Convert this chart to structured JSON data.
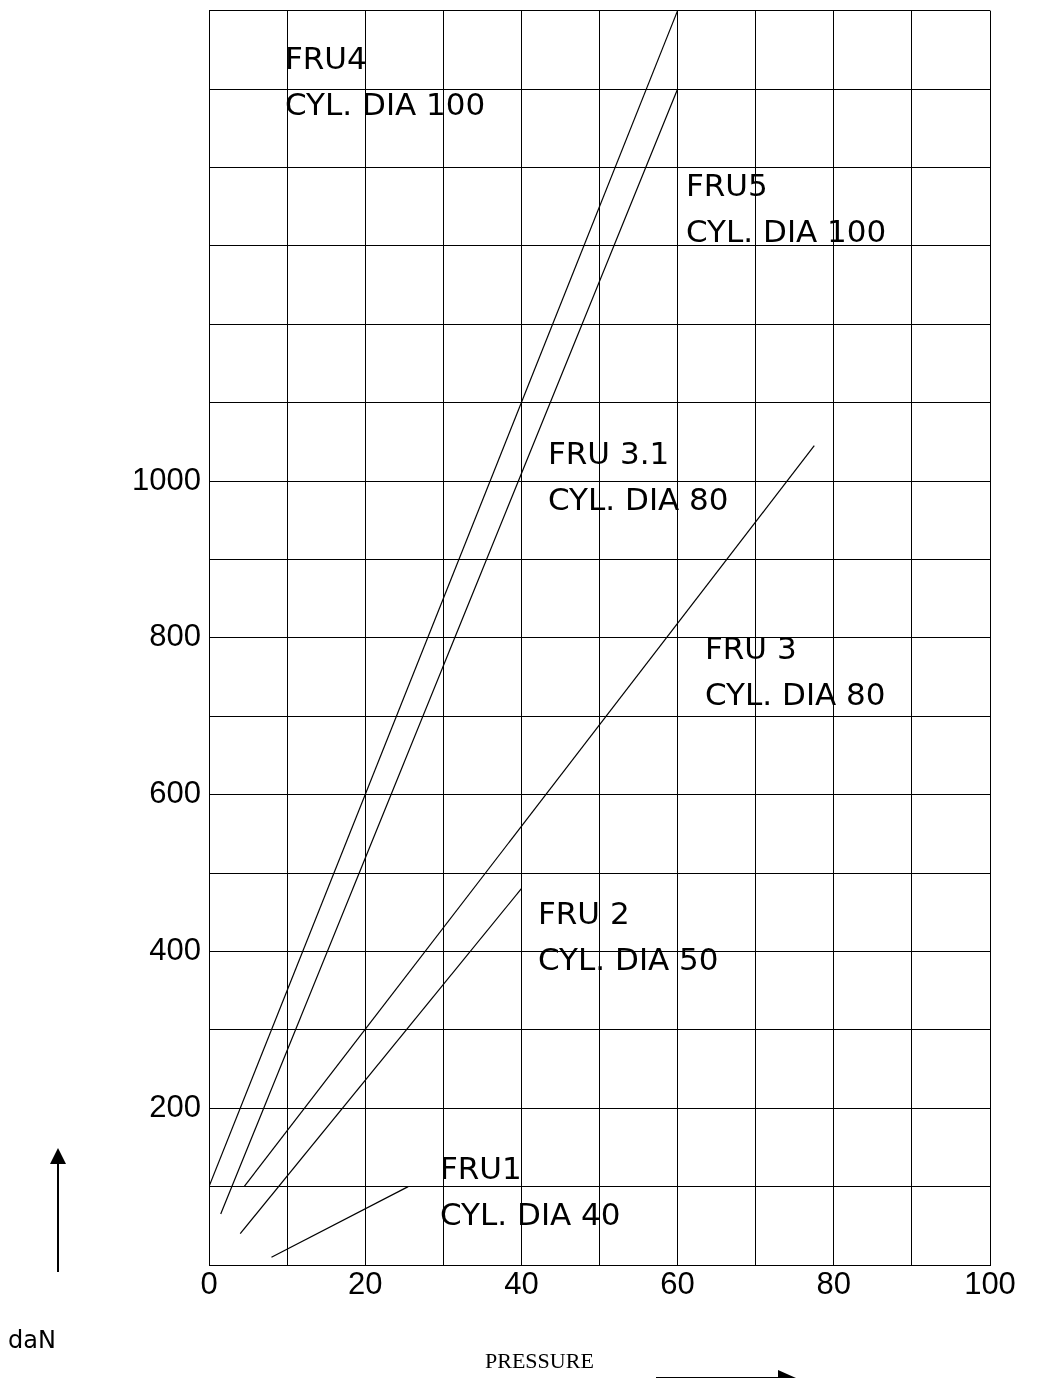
{
  "chart_data": {
    "type": "line",
    "xlabel": "PRESSURE",
    "ylabel": "daN",
    "xlim": [
      0,
      100
    ],
    "ylim": [
      0,
      1600
    ],
    "xticks": [
      0,
      {
        "value": 10,
        "label": null
      },
      20,
      {
        "value": 30,
        "label": null
      },
      40,
      {
        "value": 50,
        "label": null
      },
      60,
      {
        "value": 70,
        "label": null
      },
      80,
      {
        "value": 90,
        "label": null
      },
      100
    ],
    "yticks": [
      {
        "value": 0,
        "label": null
      },
      {
        "value": 100,
        "label": null
      },
      200,
      {
        "value": 300,
        "label": null
      },
      400,
      {
        "value": 500,
        "label": null
      },
      600,
      {
        "value": 700,
        "label": null
      },
      800,
      {
        "value": 900,
        "label": null
      },
      1000,
      {
        "value": 1100,
        "label": null
      },
      {
        "value": 1200,
        "label": null
      },
      {
        "value": 1300,
        "label": null
      },
      {
        "value": 1400,
        "label": null
      },
      {
        "value": 1500,
        "label": null
      },
      {
        "value": 1600,
        "label": null
      }
    ],
    "grid": true,
    "legend": false,
    "marker": "none",
    "line_style": "solid",
    "series": [
      {
        "color": "#000000",
        "x": [
          0,
          60
        ],
        "values": [
          100,
          1600
        ]
      },
      {
        "color": "#000000",
        "x": [
          1.5,
          60
        ],
        "values": [
          65,
          1500
        ]
      },
      {
        "color": "#000000",
        "x": [
          4.5,
          77.5
        ],
        "values": [
          100,
          1045
        ]
      },
      {
        "color": "#000000",
        "x": [
          4,
          40
        ],
        "values": [
          40,
          480
        ]
      },
      {
        "color": "#000000",
        "x": [
          8,
          25.5
        ],
        "values": [
          10,
          100
        ]
      }
    ],
    "annotations": [
      "FRU4\nCYL. DIA 100",
      "FRU5\nCYL. DIA 100",
      "FRU 3.1\nCYL. DIA 80",
      "FRU 3\nCYL. DIA 80",
      "FRU 2\nCYL. DIA 50",
      "FRU1\nCYL. DIA 40"
    ]
  }
}
